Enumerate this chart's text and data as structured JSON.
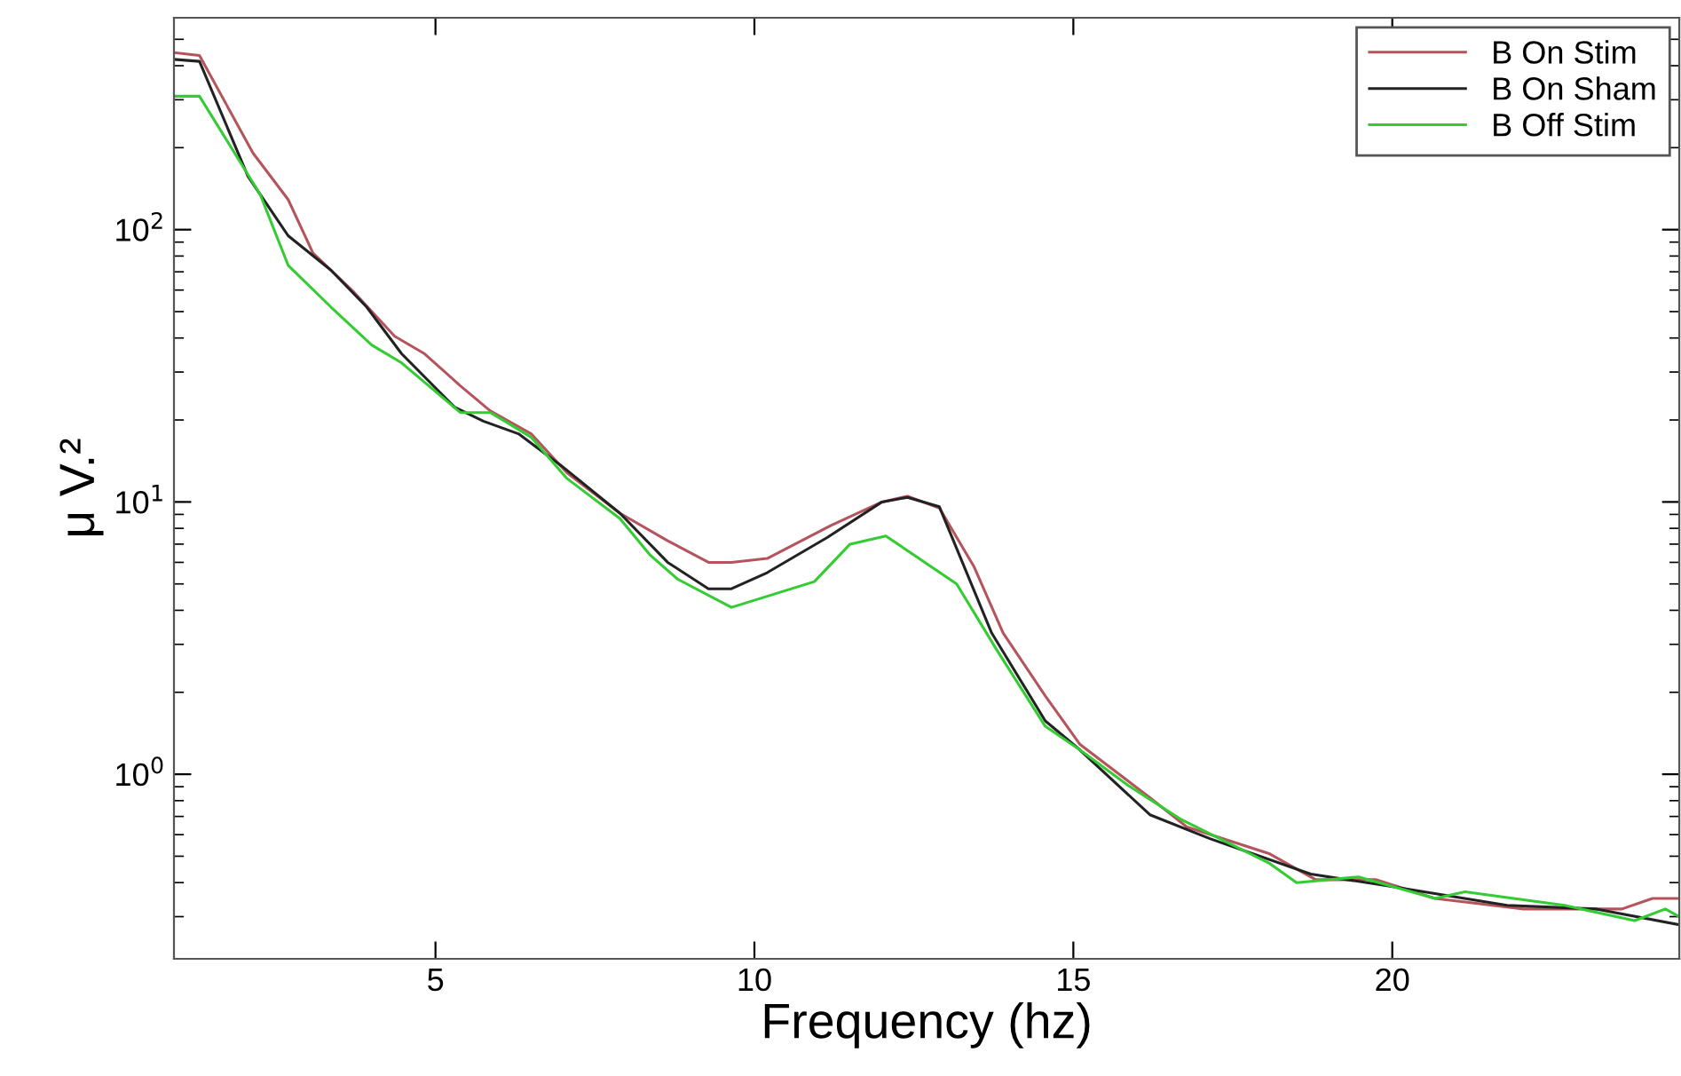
{
  "chart_data": {
    "type": "line",
    "xlabel": "Frequency (hz)",
    "ylabel": "μ V.²",
    "log": "y",
    "grid": false,
    "legend": "top right",
    "line_style": "solid",
    "marker": "none",
    "xlim": [
      0.9,
      24.5
    ],
    "xticks": [
      5,
      10,
      15,
      20
    ],
    "ylim": [
      0.21,
      600
    ],
    "yticks": [
      {
        "value": 1,
        "label": "10$^{0}$"
      },
      {
        "value": 10,
        "label": "10$^{1}$"
      },
      {
        "value": 100,
        "label": "10$^{2}$"
      }
    ],
    "series": [
      {
        "name": "B On Stim",
        "color": "#b5545c",
        "x": [
          0.9,
          1.3,
          2.14,
          2.69,
          3.08,
          3.72,
          4.36,
          4.83,
          5.39,
          5.86,
          6.5,
          7.06,
          7.89,
          8.64,
          9.28,
          9.64,
          10.2,
          11.2,
          12.0,
          12.4,
          12.9,
          13.44,
          13.9,
          14.56,
          15.1,
          16.2,
          16.78,
          18.08,
          18.8,
          19.75,
          20.67,
          22.06,
          23.6,
          24.08,
          24.5
        ],
        "values": [
          447,
          436,
          191,
          129,
          82,
          59,
          40.6,
          35,
          26.7,
          21.6,
          17.8,
          12.8,
          9.1,
          7.2,
          6.0,
          6.0,
          6.2,
          8.2,
          10.0,
          10.5,
          9.5,
          5.8,
          3.3,
          1.94,
          1.29,
          0.82,
          0.64,
          0.51,
          0.41,
          0.41,
          0.35,
          0.32,
          0.32,
          0.35,
          0.35
        ]
      },
      {
        "name": "B On Sham",
        "color": "#222222",
        "x": [
          0.9,
          1.3,
          2.06,
          2.69,
          3.36,
          3.92,
          4.47,
          5.3,
          5.75,
          6.3,
          6.97,
          7.89,
          8.64,
          9.28,
          9.64,
          10.2,
          11.14,
          12.0,
          12.4,
          12.9,
          13.72,
          14.56,
          15.1,
          16.2,
          17.14,
          18.72,
          19.9,
          21.8,
          23.2,
          24.5
        ],
        "values": [
          422,
          415,
          157,
          95,
          71,
          52,
          35,
          22.3,
          19.8,
          17.8,
          13.6,
          9.1,
          6.0,
          4.8,
          4.8,
          5.5,
          7.4,
          10.0,
          10.4,
          9.6,
          3.3,
          1.57,
          1.23,
          0.71,
          0.58,
          0.43,
          0.39,
          0.33,
          0.32,
          0.28
        ]
      },
      {
        "name": "B Off Stim",
        "color": "#33cc33",
        "x": [
          0.9,
          1.3,
          2.25,
          2.69,
          3.36,
          4.0,
          4.47,
          5.39,
          5.86,
          6.5,
          7.06,
          7.89,
          8.36,
          8.8,
          9.64,
          10.94,
          11.5,
          12.06,
          13.17,
          13.8,
          14.56,
          15.1,
          15.86,
          16.7,
          18.08,
          18.5,
          19.47,
          20.67,
          21.14,
          22.7,
          23.8,
          24.28,
          24.5
        ],
        "values": [
          309,
          309,
          135,
          74,
          52,
          37.7,
          32.4,
          21.3,
          21.3,
          17.3,
          12.2,
          8.7,
          6.4,
          5.2,
          4.1,
          5.1,
          7.0,
          7.5,
          5.0,
          2.86,
          1.5,
          1.23,
          0.91,
          0.68,
          0.47,
          0.4,
          0.42,
          0.35,
          0.37,
          0.33,
          0.29,
          0.32,
          0.3
        ]
      }
    ]
  }
}
